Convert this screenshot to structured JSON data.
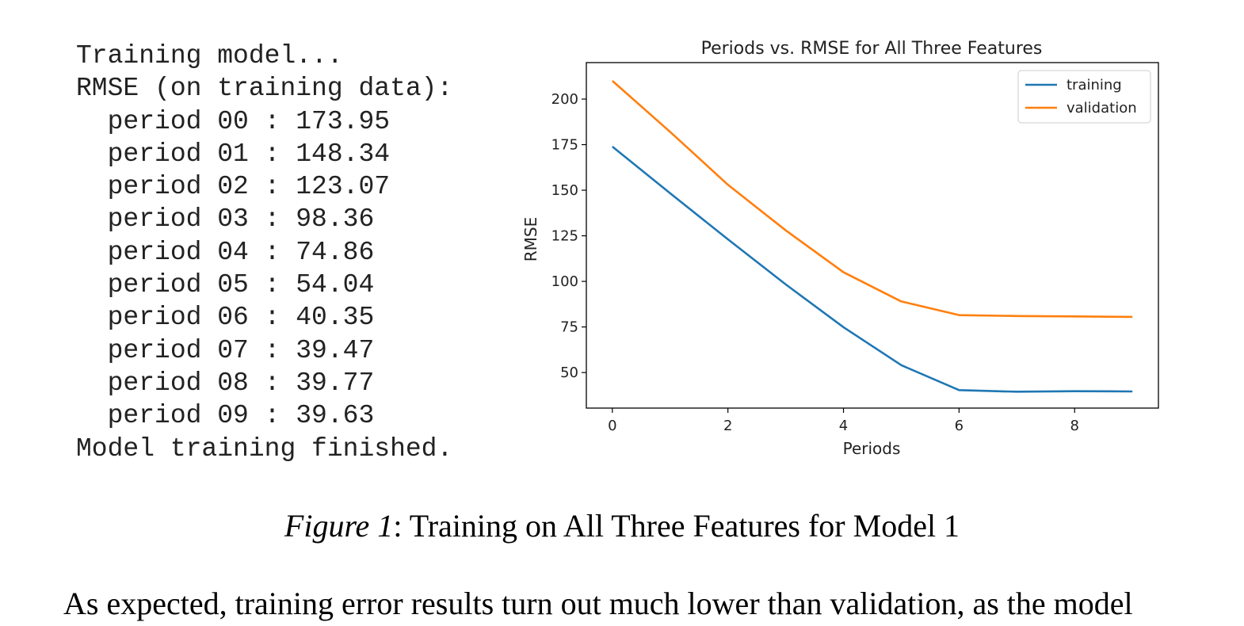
{
  "console": {
    "lines": [
      "Training model...",
      "RMSE (on training data):",
      "  period 00 : 173.95",
      "  period 01 : 148.34",
      "  period 02 : 123.07",
      "  period 03 : 98.36",
      "  period 04 : 74.86",
      "  period 05 : 54.04",
      "  period 06 : 40.35",
      "  period 07 : 39.47",
      "  period 08 : 39.77",
      "  period 09 : 39.63",
      "Model training finished."
    ]
  },
  "chart_data": {
    "type": "line",
    "title": "Periods vs. RMSE for All Three Features",
    "xlabel": "Periods",
    "ylabel": "RMSE",
    "x": [
      0,
      1,
      2,
      3,
      4,
      5,
      6,
      7,
      8,
      9
    ],
    "series": [
      {
        "name": "training",
        "color": "#1f77b4",
        "values": [
          173.95,
          148.34,
          123.07,
          98.36,
          74.86,
          54.04,
          40.35,
          39.47,
          39.77,
          39.63
        ]
      },
      {
        "name": "validation",
        "color": "#ff7f0e",
        "values": [
          210,
          182,
          153,
          128,
          105,
          89,
          81.5,
          81,
          80.8,
          80.5
        ]
      }
    ],
    "xlim": [
      -0.45,
      9.45
    ],
    "ylim": [
      30.5,
      220
    ],
    "xticks": [
      0,
      2,
      4,
      6,
      8
    ],
    "yticks": [
      50,
      75,
      100,
      125,
      150,
      175,
      200
    ],
    "grid": false,
    "legend_position": "top-right"
  },
  "caption": {
    "figure_label": "Figure 1",
    "text": ": Training on All Three Features for Model 1"
  },
  "body_text": "As expected, training error results turn out much lower than validation, as the model"
}
